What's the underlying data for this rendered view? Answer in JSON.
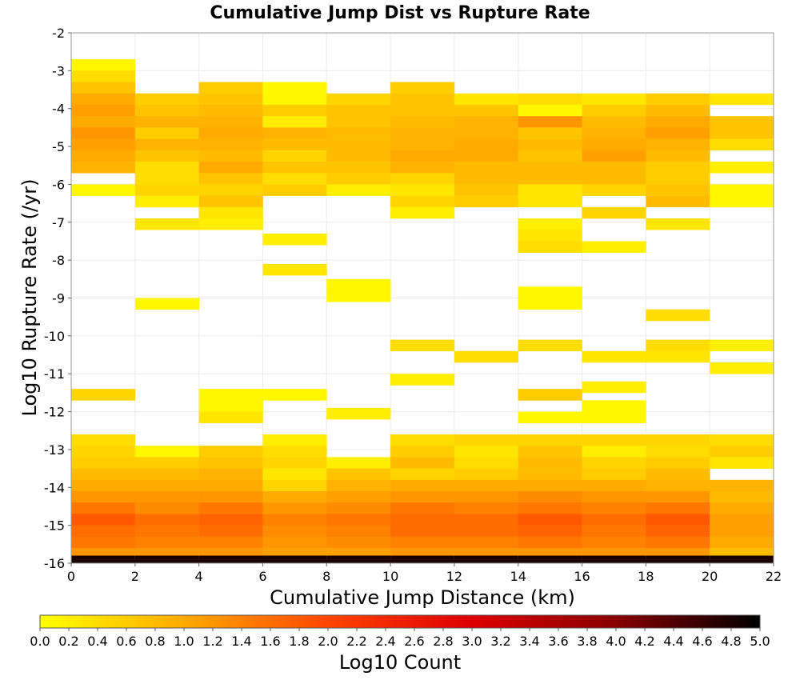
{
  "chart_data": {
    "type": "heatmap",
    "title": "Cumulative Jump Dist vs Rupture Rate",
    "xlabel": "Cumulative Jump Distance (km)",
    "ylabel": "Log10 Rupture Rate (/yr)",
    "colorbar_label": "Log10 Count",
    "xlim": [
      0,
      22
    ],
    "ylim": [
      -16,
      -2
    ],
    "x_ticks": [
      0,
      2,
      4,
      6,
      8,
      10,
      12,
      14,
      16,
      18,
      20,
      22
    ],
    "y_ticks": [
      -2,
      -3,
      -4,
      -5,
      -6,
      -7,
      -8,
      -9,
      -10,
      -11,
      -12,
      -13,
      -14,
      -15,
      -16
    ],
    "colorbar_range": [
      0,
      5
    ],
    "colorbar_ticks": [
      0.0,
      0.2,
      0.4,
      0.6,
      0.8,
      1.0,
      1.2,
      1.4,
      1.6,
      1.8,
      2.0,
      2.2,
      2.4,
      2.6,
      2.8,
      3.0,
      3.2,
      3.4,
      3.6,
      3.8,
      4.0,
      4.2,
      4.4,
      4.6,
      4.8,
      5.0
    ],
    "colormap": [
      "#ffff00",
      "#ffaa00",
      "#ff4400",
      "#dd0000",
      "#880000",
      "#000000"
    ],
    "x_bin_width": 2,
    "y_bin_height": 0.3,
    "grid": true,
    "cells": [
      [
        1,
        -2.85,
        0.1
      ],
      [
        1,
        -3.15,
        0.4
      ],
      [
        1,
        -3.45,
        0.7
      ],
      [
        1,
        -3.75,
        1.0
      ],
      [
        1,
        -4.05,
        1.1
      ],
      [
        1,
        -4.35,
        1.0
      ],
      [
        1,
        -4.65,
        1.2
      ],
      [
        1,
        -4.95,
        1.1
      ],
      [
        1,
        -5.25,
        1.0
      ],
      [
        1,
        -5.55,
        0.9
      ],
      [
        1,
        -6.15,
        0.1
      ],
      [
        1,
        -11.55,
        0.5
      ],
      [
        1,
        -12.75,
        0.4
      ],
      [
        1,
        -13.05,
        0.5
      ],
      [
        1,
        -13.35,
        0.6
      ],
      [
        1,
        -13.65,
        0.8
      ],
      [
        1,
        -13.95,
        1.0
      ],
      [
        1,
        -14.25,
        1.2
      ],
      [
        1,
        -14.55,
        1.5
      ],
      [
        1,
        -14.85,
        1.8
      ],
      [
        1,
        -15.15,
        1.6
      ],
      [
        1,
        -15.45,
        1.5
      ],
      [
        1,
        -15.75,
        1.2
      ],
      [
        1,
        -15.95,
        4.8
      ],
      [
        3,
        -3.75,
        0.6
      ],
      [
        3,
        -4.05,
        0.7
      ],
      [
        3,
        -4.35,
        0.9
      ],
      [
        3,
        -4.65,
        0.6
      ],
      [
        3,
        -4.95,
        0.9
      ],
      [
        3,
        -5.25,
        0.7
      ],
      [
        3,
        -5.55,
        0.4
      ],
      [
        3,
        -5.85,
        0.4
      ],
      [
        3,
        -6.15,
        0.5
      ],
      [
        3,
        -6.45,
        0.2
      ],
      [
        3,
        -7.05,
        0.3
      ],
      [
        3,
        -9.15,
        0.1
      ],
      [
        3,
        -13.05,
        0.1
      ],
      [
        3,
        -13.35,
        0.6
      ],
      [
        3,
        -13.65,
        0.8
      ],
      [
        3,
        -13.95,
        1.0
      ],
      [
        3,
        -14.25,
        1.2
      ],
      [
        3,
        -14.55,
        1.3
      ],
      [
        3,
        -14.85,
        1.6
      ],
      [
        3,
        -15.15,
        1.5
      ],
      [
        3,
        -15.45,
        1.4
      ],
      [
        3,
        -15.75,
        1.2
      ],
      [
        3,
        -15.95,
        4.8
      ],
      [
        5,
        -3.45,
        0.6
      ],
      [
        5,
        -3.75,
        0.7
      ],
      [
        5,
        -4.05,
        0.8
      ],
      [
        5,
        -4.35,
        0.9
      ],
      [
        5,
        -4.65,
        1.0
      ],
      [
        5,
        -4.95,
        0.9
      ],
      [
        5,
        -5.25,
        0.8
      ],
      [
        5,
        -5.55,
        1.0
      ],
      [
        5,
        -5.85,
        0.7
      ],
      [
        5,
        -6.15,
        0.5
      ],
      [
        5,
        -6.45,
        0.7
      ],
      [
        5,
        -6.75,
        0.3
      ],
      [
        5,
        -7.05,
        0.2
      ],
      [
        5,
        -11.55,
        0.1
      ],
      [
        5,
        -11.85,
        0.1
      ],
      [
        5,
        -12.15,
        0.3
      ],
      [
        5,
        -13.05,
        0.6
      ],
      [
        5,
        -13.35,
        0.7
      ],
      [
        5,
        -13.65,
        0.9
      ],
      [
        5,
        -13.95,
        1.0
      ],
      [
        5,
        -14.25,
        1.2
      ],
      [
        5,
        -14.55,
        1.5
      ],
      [
        5,
        -14.85,
        1.7
      ],
      [
        5,
        -15.15,
        1.6
      ],
      [
        5,
        -15.45,
        1.4
      ],
      [
        5,
        -15.75,
        1.2
      ],
      [
        5,
        -15.95,
        4.8
      ],
      [
        7,
        -3.45,
        0.1
      ],
      [
        7,
        -3.75,
        0.1
      ],
      [
        7,
        -4.05,
        0.6
      ],
      [
        7,
        -4.35,
        0.2
      ],
      [
        7,
        -4.65,
        0.9
      ],
      [
        7,
        -4.95,
        0.8
      ],
      [
        7,
        -5.25,
        0.5
      ],
      [
        7,
        -5.55,
        0.7
      ],
      [
        7,
        -5.85,
        0.4
      ],
      [
        7,
        -6.15,
        0.6
      ],
      [
        7,
        -7.45,
        0.2
      ],
      [
        7,
        -8.25,
        0.3
      ],
      [
        7,
        -11.55,
        0.1
      ],
      [
        7,
        -12.75,
        0.2
      ],
      [
        7,
        -13.05,
        0.4
      ],
      [
        7,
        -13.35,
        0.5
      ],
      [
        7,
        -13.65,
        0.3
      ],
      [
        7,
        -13.95,
        0.5
      ],
      [
        7,
        -14.25,
        1.0
      ],
      [
        7,
        -14.55,
        1.2
      ],
      [
        7,
        -14.85,
        1.4
      ],
      [
        7,
        -15.15,
        1.3
      ],
      [
        7,
        -15.45,
        1.2
      ],
      [
        7,
        -15.75,
        1.1
      ],
      [
        7,
        -15.95,
        4.8
      ],
      [
        9,
        -3.75,
        0.5
      ],
      [
        9,
        -4.05,
        0.7
      ],
      [
        9,
        -4.35,
        0.7
      ],
      [
        9,
        -4.65,
        0.8
      ],
      [
        9,
        -4.95,
        0.8
      ],
      [
        9,
        -5.25,
        0.8
      ],
      [
        9,
        -5.55,
        0.7
      ],
      [
        9,
        -5.85,
        0.6
      ],
      [
        9,
        -6.15,
        0.2
      ],
      [
        9,
        -8.65,
        0.1
      ],
      [
        9,
        -8.95,
        0.1
      ],
      [
        9,
        -12.05,
        0.2
      ],
      [
        9,
        -13.35,
        0.2
      ],
      [
        9,
        -13.65,
        0.7
      ],
      [
        9,
        -13.95,
        0.9
      ],
      [
        9,
        -14.25,
        1.1
      ],
      [
        9,
        -14.55,
        1.3
      ],
      [
        9,
        -14.85,
        1.5
      ],
      [
        9,
        -15.15,
        1.4
      ],
      [
        9,
        -15.45,
        1.3
      ],
      [
        9,
        -15.75,
        1.1
      ],
      [
        9,
        -15.95,
        4.8
      ],
      [
        11,
        -3.45,
        0.6
      ],
      [
        11,
        -3.75,
        0.7
      ],
      [
        11,
        -4.05,
        0.7
      ],
      [
        11,
        -4.35,
        0.8
      ],
      [
        11,
        -4.65,
        0.9
      ],
      [
        11,
        -4.95,
        0.9
      ],
      [
        11,
        -5.25,
        1.0
      ],
      [
        11,
        -5.55,
        0.9
      ],
      [
        11,
        -5.85,
        0.5
      ],
      [
        11,
        -6.15,
        0.3
      ],
      [
        11,
        -6.45,
        0.5
      ],
      [
        11,
        -6.75,
        0.2
      ],
      [
        11,
        -10.25,
        0.4
      ],
      [
        11,
        -11.15,
        0.2
      ],
      [
        11,
        -12.75,
        0.4
      ],
      [
        11,
        -13.05,
        0.6
      ],
      [
        11,
        -13.35,
        0.8
      ],
      [
        11,
        -13.65,
        0.5
      ],
      [
        11,
        -13.95,
        1.0
      ],
      [
        11,
        -14.25,
        1.2
      ],
      [
        11,
        -14.55,
        1.5
      ],
      [
        11,
        -14.85,
        1.6
      ],
      [
        11,
        -15.15,
        1.6
      ],
      [
        11,
        -15.45,
        1.4
      ],
      [
        11,
        -15.75,
        1.2
      ],
      [
        11,
        -15.95,
        4.8
      ],
      [
        13,
        -3.75,
        0.3
      ],
      [
        13,
        -4.05,
        0.7
      ],
      [
        13,
        -4.35,
        0.9
      ],
      [
        13,
        -4.65,
        0.9
      ],
      [
        13,
        -4.95,
        1.0
      ],
      [
        13,
        -5.25,
        1.0
      ],
      [
        13,
        -5.55,
        0.8
      ],
      [
        13,
        -5.85,
        0.8
      ],
      [
        13,
        -6.15,
        0.7
      ],
      [
        13,
        -6.45,
        0.6
      ],
      [
        13,
        -10.55,
        0.4
      ],
      [
        13,
        -12.75,
        0.5
      ],
      [
        13,
        -13.05,
        0.3
      ],
      [
        13,
        -13.35,
        0.4
      ],
      [
        13,
        -13.65,
        0.6
      ],
      [
        13,
        -13.95,
        1.0
      ],
      [
        13,
        -14.25,
        1.2
      ],
      [
        13,
        -14.55,
        1.4
      ],
      [
        13,
        -14.85,
        1.6
      ],
      [
        13,
        -15.15,
        1.6
      ],
      [
        13,
        -15.45,
        1.4
      ],
      [
        13,
        -15.75,
        1.2
      ],
      [
        13,
        -15.95,
        4.8
      ],
      [
        15,
        -3.75,
        0.4
      ],
      [
        15,
        -4.05,
        0.1
      ],
      [
        15,
        -4.35,
        1.2
      ],
      [
        15,
        -4.65,
        0.7
      ],
      [
        15,
        -4.95,
        0.8
      ],
      [
        15,
        -5.25,
        0.7
      ],
      [
        15,
        -5.55,
        0.8
      ],
      [
        15,
        -5.85,
        0.8
      ],
      [
        15,
        -6.15,
        0.3
      ],
      [
        15,
        -6.45,
        0.3
      ],
      [
        15,
        -7.05,
        0.2
      ],
      [
        15,
        -7.35,
        0.3
      ],
      [
        15,
        -7.65,
        0.4
      ],
      [
        15,
        -8.85,
        0.1
      ],
      [
        15,
        -9.15,
        0.1
      ],
      [
        15,
        -10.25,
        0.4
      ],
      [
        15,
        -11.55,
        0.6
      ],
      [
        15,
        -12.15,
        0.1
      ],
      [
        15,
        -12.75,
        0.5
      ],
      [
        15,
        -13.05,
        0.7
      ],
      [
        15,
        -13.35,
        0.8
      ],
      [
        15,
        -13.65,
        0.8
      ],
      [
        15,
        -13.95,
        1.0
      ],
      [
        15,
        -14.25,
        1.3
      ],
      [
        15,
        -14.55,
        1.5
      ],
      [
        15,
        -14.85,
        1.8
      ],
      [
        15,
        -15.15,
        1.7
      ],
      [
        15,
        -15.45,
        1.5
      ],
      [
        15,
        -15.75,
        1.2
      ],
      [
        15,
        -15.95,
        4.8
      ],
      [
        17,
        -3.75,
        0.3
      ],
      [
        17,
        -4.05,
        0.6
      ],
      [
        17,
        -4.35,
        0.8
      ],
      [
        17,
        -4.65,
        0.9
      ],
      [
        17,
        -4.95,
        1.0
      ],
      [
        17,
        -5.25,
        1.1
      ],
      [
        17,
        -5.55,
        0.8
      ],
      [
        17,
        -5.85,
        0.8
      ],
      [
        17,
        -6.15,
        0.5
      ],
      [
        17,
        -6.75,
        0.5
      ],
      [
        17,
        -7.65,
        0.2
      ],
      [
        17,
        -10.55,
        0.3
      ],
      [
        17,
        -11.35,
        0.2
      ],
      [
        17,
        -11.85,
        0.1
      ],
      [
        17,
        -12.15,
        0.1
      ],
      [
        17,
        -12.75,
        0.5
      ],
      [
        17,
        -13.05,
        0.2
      ],
      [
        17,
        -13.35,
        0.5
      ],
      [
        17,
        -13.65,
        0.6
      ],
      [
        17,
        -13.95,
        1.0
      ],
      [
        17,
        -14.25,
        1.2
      ],
      [
        17,
        -14.55,
        1.4
      ],
      [
        17,
        -14.85,
        1.6
      ],
      [
        17,
        -15.15,
        1.5
      ],
      [
        17,
        -15.45,
        1.4
      ],
      [
        17,
        -15.75,
        1.2
      ],
      [
        17,
        -15.95,
        4.8
      ],
      [
        19,
        -3.75,
        0.6
      ],
      [
        19,
        -4.05,
        0.8
      ],
      [
        19,
        -4.35,
        1.0
      ],
      [
        19,
        -4.65,
        1.1
      ],
      [
        19,
        -4.95,
        0.9
      ],
      [
        19,
        -5.25,
        0.8
      ],
      [
        19,
        -5.55,
        0.6
      ],
      [
        19,
        -5.85,
        0.6
      ],
      [
        19,
        -6.15,
        0.7
      ],
      [
        19,
        -6.45,
        0.8
      ],
      [
        19,
        -7.05,
        0.3
      ],
      [
        19,
        -9.45,
        0.4
      ],
      [
        19,
        -10.25,
        0.4
      ],
      [
        19,
        -10.55,
        0.3
      ],
      [
        19,
        -12.75,
        0.5
      ],
      [
        19,
        -13.05,
        0.4
      ],
      [
        19,
        -13.35,
        0.6
      ],
      [
        19,
        -13.65,
        0.8
      ],
      [
        19,
        -13.95,
        0.9
      ],
      [
        19,
        -14.25,
        1.2
      ],
      [
        19,
        -14.55,
        1.5
      ],
      [
        19,
        -14.85,
        1.8
      ],
      [
        19,
        -15.15,
        1.7
      ],
      [
        19,
        -15.45,
        1.5
      ],
      [
        19,
        -15.75,
        1.2
      ],
      [
        19,
        -15.95,
        4.8
      ],
      [
        21,
        -3.75,
        0.3
      ],
      [
        21,
        -4.35,
        0.7
      ],
      [
        21,
        -4.65,
        0.7
      ],
      [
        21,
        -4.95,
        0.4
      ],
      [
        21,
        -5.55,
        0.2
      ],
      [
        21,
        -6.15,
        0.1
      ],
      [
        21,
        -6.45,
        0.1
      ],
      [
        21,
        -10.25,
        0.2
      ],
      [
        21,
        -10.85,
        0.2
      ],
      [
        21,
        -12.75,
        0.4
      ],
      [
        21,
        -13.05,
        0.6
      ],
      [
        21,
        -13.35,
        0.3
      ],
      [
        21,
        -13.95,
        0.9
      ],
      [
        21,
        -14.25,
        0.8
      ],
      [
        21,
        -14.55,
        1.0
      ],
      [
        21,
        -14.85,
        1.1
      ],
      [
        21,
        -15.15,
        1.1
      ],
      [
        21,
        -15.45,
        1.0
      ],
      [
        21,
        -15.75,
        0.8
      ],
      [
        21,
        -15.95,
        4.8
      ]
    ]
  }
}
